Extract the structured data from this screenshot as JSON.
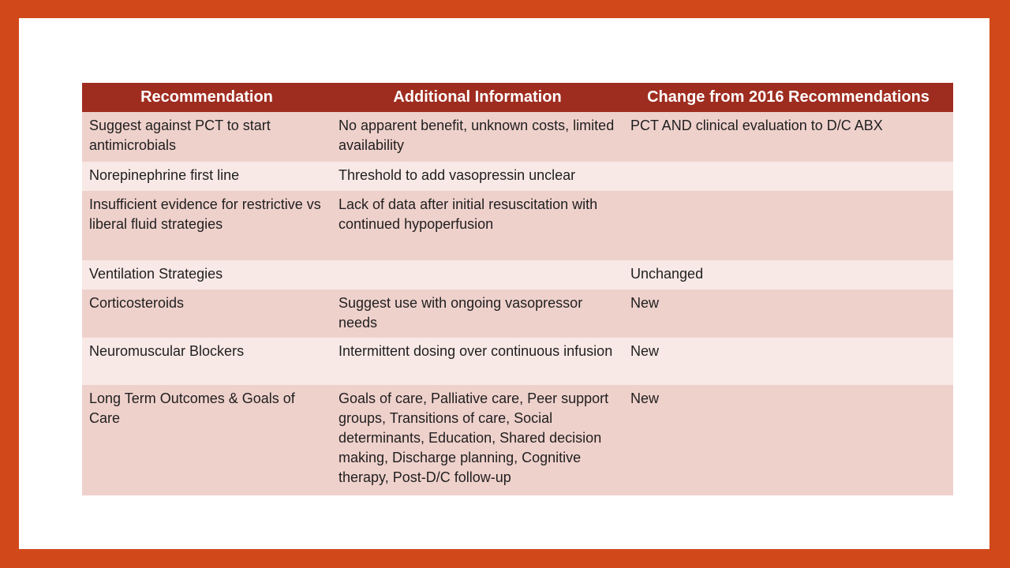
{
  "colors": {
    "frame_orange": "#d1491a",
    "header_red": "#9e2d20",
    "row_pink_dark": "#efd1cc",
    "row_pink_light": "#f8e9e6",
    "header_text": "#ffffff",
    "body_text": "#1f1f1f"
  },
  "table": {
    "columns": [
      "Recommendation",
      "Additional Information",
      "Change from 2016 Recommendations"
    ],
    "rows": [
      {
        "recommendation": "Suggest against PCT to start antimicrobials",
        "additional_information": "No apparent benefit, unknown costs, limited availability",
        "change_from_2016": "PCT AND clinical evaluation to D/C ABX"
      },
      {
        "recommendation": "Norepinephrine first line",
        "additional_information": "Threshold to add vasopressin unclear",
        "change_from_2016": ""
      },
      {
        "recommendation": "Insufficient evidence for restrictive vs liberal fluid strategies",
        "additional_information": "Lack of data after initial resuscitation with continued hypoperfusion",
        "change_from_2016": ""
      },
      {
        "recommendation": "Ventilation Strategies",
        "additional_information": "",
        "change_from_2016": "Unchanged"
      },
      {
        "recommendation": "Corticosteroids",
        "additional_information": "Suggest use with ongoing vasopressor needs",
        "change_from_2016": "New"
      },
      {
        "recommendation": "Neuromuscular Blockers",
        "additional_information": "Intermittent dosing over continuous infusion",
        "change_from_2016": "New"
      },
      {
        "recommendation": "Long Term Outcomes & Goals of Care",
        "additional_information": "Goals of care, Palliative care, Peer support groups, Transitions of care, Social determinants, Education, Shared decision making, Discharge planning, Cognitive therapy, Post-D/C follow-up",
        "change_from_2016": "New"
      }
    ]
  }
}
